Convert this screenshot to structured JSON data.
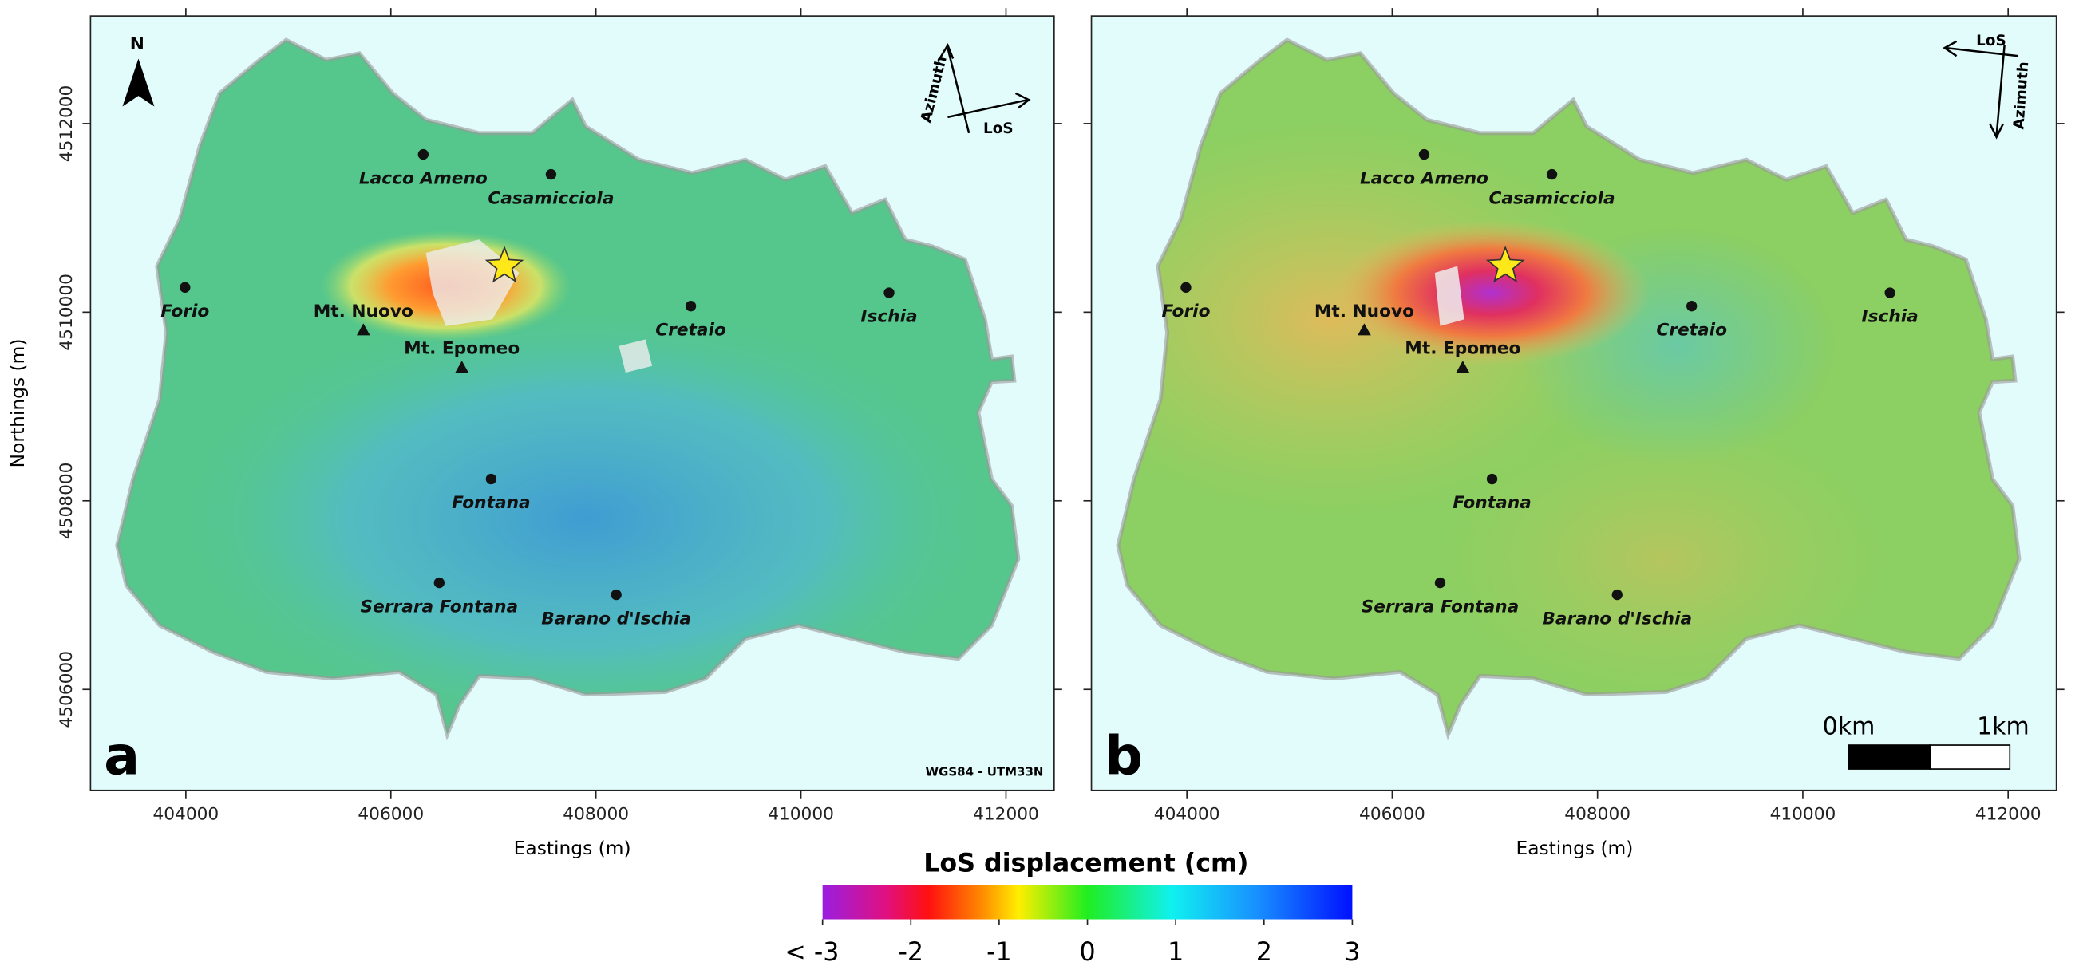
{
  "north": "N",
  "panels": [
    {
      "label": "a",
      "azimuth": "Azimuth",
      "los": "LoS",
      "attribution": "WGS84 - UTM33N"
    },
    {
      "label": "b",
      "azimuth": "Azimuth",
      "los": "LoS",
      "scale_bar": [
        "0km",
        "1km"
      ]
    }
  ],
  "places": [
    "Lacco Ameno",
    "Casamicciola",
    "Forio",
    "Cretaio",
    "Ischia",
    "Fontana",
    "Serrara Fontana",
    "Barano d'Ischia"
  ],
  "peaks": [
    "Mt. Nuovo",
    "Mt. Epomeo"
  ],
  "axes": {
    "xlabel": "Eastings (m)",
    "ylabel": "Northings (m)",
    "xlim": [
      403070,
      412470
    ],
    "ylim": [
      4504930,
      4513140
    ],
    "xticks": [
      404000,
      406000,
      408000,
      410000,
      412000
    ],
    "yticks": [
      4506000,
      4508000,
      4510000,
      4512000
    ]
  },
  "colorbar": {
    "title": "LoS displacement (cm)",
    "lim": [
      -3,
      3
    ],
    "ticks": [
      {
        "value": -3,
        "label": "< -3"
      },
      -2,
      -1,
      0,
      1,
      2,
      3
    ]
  }
}
